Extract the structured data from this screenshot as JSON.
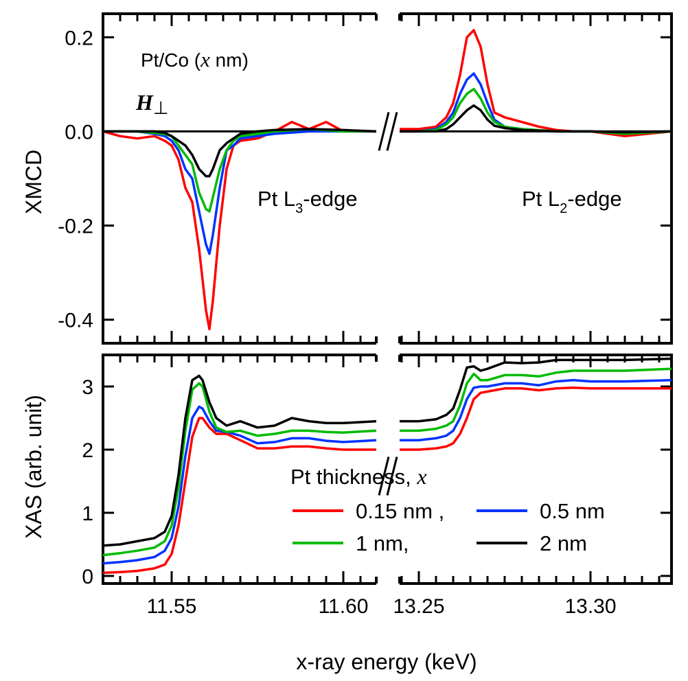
{
  "chart_data": [
    {
      "panel": "top",
      "type": "line",
      "ylabel": "XMCD",
      "ylim": [
        -0.45,
        0.25
      ],
      "yticks": [
        0.2,
        0.0,
        -0.2,
        -0.4
      ],
      "ytick_labels": [
        "0.2",
        "0.0",
        "-0.2",
        "-0.4"
      ],
      "x_segments": [
        {
          "xlim": [
            11.53,
            11.6096
          ],
          "xticks_major": [
            11.55,
            11.6
          ]
        },
        {
          "xlim": [
            13.2444,
            13.3236
          ],
          "xticks_major": [
            13.25,
            13.3
          ]
        }
      ],
      "zero_line": true,
      "annotations": {
        "sample": {
          "pre": "Pt/Co (",
          "var": "x",
          "post": " nm)"
        },
        "field": {
          "symbol": "H",
          "sub": "⊥"
        },
        "l3": {
          "pre": "Pt L",
          "sub": "3",
          "post": "-edge"
        },
        "l2": {
          "pre": "Pt L",
          "sub": "2",
          "post": "-edge"
        }
      },
      "series": [
        {
          "name": "0.15 nm",
          "color": "#ff0000",
          "x": [
            11.53,
            11.535,
            11.54,
            11.545,
            11.548,
            11.55,
            11.552,
            11.554,
            11.556,
            11.558,
            11.56,
            11.561,
            11.562,
            11.564,
            11.566,
            11.568,
            11.57,
            11.575,
            11.58,
            11.585,
            11.59,
            11.595,
            11.6,
            11.6096,
            13.2444,
            13.25,
            13.255,
            13.258,
            13.26,
            13.262,
            13.264,
            13.266,
            13.268,
            13.27,
            13.272,
            13.275,
            13.28,
            13.285,
            13.29,
            13.295,
            13.3,
            13.31,
            13.3236
          ],
          "y": [
            0.0,
            -0.01,
            -0.015,
            -0.01,
            -0.02,
            -0.03,
            -0.06,
            -0.12,
            -0.15,
            -0.25,
            -0.38,
            -0.42,
            -0.36,
            -0.2,
            -0.08,
            -0.03,
            -0.02,
            -0.015,
            0.0,
            0.02,
            0.005,
            0.02,
            0.0,
            0.0,
            0.005,
            0.005,
            0.01,
            0.03,
            0.06,
            0.12,
            0.2,
            0.215,
            0.18,
            0.1,
            0.04,
            0.03,
            0.02,
            0.01,
            0.003,
            0.0,
            0.0,
            -0.01,
            0.0
          ]
        },
        {
          "name": "0.5 nm",
          "color": "#0033ff",
          "x": [
            11.53,
            11.54,
            11.545,
            11.548,
            11.55,
            11.552,
            11.554,
            11.556,
            11.558,
            11.56,
            11.561,
            11.562,
            11.564,
            11.566,
            11.568,
            11.57,
            11.575,
            11.58,
            11.59,
            11.6,
            11.6096,
            13.2444,
            13.25,
            13.255,
            13.258,
            13.26,
            13.262,
            13.264,
            13.266,
            13.268,
            13.27,
            13.272,
            13.275,
            13.28,
            13.29,
            13.3,
            13.31,
            13.3236
          ],
          "y": [
            0.0,
            0.0,
            -0.005,
            -0.01,
            -0.02,
            -0.04,
            -0.08,
            -0.1,
            -0.17,
            -0.24,
            -0.26,
            -0.22,
            -0.12,
            -0.04,
            -0.03,
            -0.015,
            -0.01,
            -0.005,
            0.0,
            0.0,
            0.0,
            0.0,
            0.0,
            0.005,
            0.02,
            0.04,
            0.08,
            0.11,
            0.123,
            0.1,
            0.06,
            0.025,
            0.01,
            0.005,
            0.0,
            0.0,
            -0.005,
            0.0
          ]
        },
        {
          "name": "1 nm",
          "color": "#00bb00",
          "x": [
            11.53,
            11.54,
            11.545,
            11.548,
            11.55,
            11.552,
            11.554,
            11.556,
            11.558,
            11.56,
            11.561,
            11.562,
            11.564,
            11.566,
            11.568,
            11.57,
            11.575,
            11.58,
            11.59,
            11.6,
            11.6096,
            13.2444,
            13.25,
            13.255,
            13.258,
            13.26,
            13.262,
            13.264,
            13.266,
            13.268,
            13.27,
            13.272,
            13.275,
            13.28,
            13.29,
            13.3,
            13.31,
            13.3236
          ],
          "y": [
            0.0,
            0.0,
            -0.003,
            -0.006,
            -0.01,
            -0.03,
            -0.05,
            -0.07,
            -0.13,
            -0.165,
            -0.17,
            -0.14,
            -0.08,
            -0.04,
            -0.02,
            -0.01,
            -0.005,
            0.0,
            0.005,
            0.0,
            0.0,
            0.0,
            0.0,
            0.003,
            0.015,
            0.03,
            0.06,
            0.08,
            0.09,
            0.07,
            0.04,
            0.02,
            0.01,
            0.005,
            0.0,
            0.0,
            -0.005,
            0.0
          ]
        },
        {
          "name": "2 nm",
          "color": "#000000",
          "x": [
            11.53,
            11.54,
            11.545,
            11.548,
            11.55,
            11.552,
            11.554,
            11.556,
            11.558,
            11.56,
            11.561,
            11.562,
            11.564,
            11.566,
            11.568,
            11.57,
            11.575,
            11.58,
            11.59,
            11.6,
            11.6096,
            13.2444,
            13.25,
            13.255,
            13.258,
            13.26,
            13.262,
            13.264,
            13.266,
            13.268,
            13.27,
            13.272,
            13.275,
            13.28,
            13.29,
            13.3,
            13.31,
            13.3236
          ],
          "y": [
            0.0,
            0.0,
            0.0,
            -0.003,
            -0.01,
            -0.02,
            -0.03,
            -0.05,
            -0.08,
            -0.095,
            -0.095,
            -0.08,
            -0.04,
            -0.025,
            -0.015,
            -0.005,
            0.0,
            0.003,
            0.005,
            0.003,
            0.0,
            0.0,
            0.0,
            0.0,
            0.005,
            0.015,
            0.03,
            0.045,
            0.055,
            0.045,
            0.025,
            0.012,
            0.007,
            0.003,
            0.0,
            0.0,
            -0.002,
            0.0
          ]
        }
      ]
    },
    {
      "panel": "bottom",
      "type": "line",
      "ylabel": "XAS (arb. unit)",
      "xlabel": "x-ray energy (keV)",
      "ylim": [
        -0.12,
        3.5
      ],
      "yticks": [
        0,
        1,
        2,
        3
      ],
      "ytick_labels": [
        "0",
        "1",
        "2",
        "3"
      ],
      "x_segments": [
        {
          "xlim": [
            11.53,
            11.6096
          ],
          "xticks_major": [
            11.55,
            11.6
          ],
          "xtick_labels": [
            "11.55",
            "11.60"
          ]
        },
        {
          "xlim": [
            13.2444,
            13.3236
          ],
          "xticks_major": [
            13.25,
            13.3
          ],
          "xtick_labels": [
            "13.25",
            "13.30"
          ]
        }
      ],
      "legend": {
        "title_pre": "Pt thickness, ",
        "title_var": "x",
        "placement": "lower-right",
        "entries": [
          {
            "label": "0.15 nm ,",
            "color": "#ff0000"
          },
          {
            "label": "0.5 nm",
            "color": "#0033ff"
          },
          {
            "label": "1 nm,",
            "color": "#00bb00"
          },
          {
            "label": "2 nm",
            "color": "#000000"
          }
        ]
      },
      "series": [
        {
          "name": "0.15 nm",
          "color": "#ff0000",
          "x": [
            11.53,
            11.535,
            11.54,
            11.545,
            11.548,
            11.55,
            11.552,
            11.554,
            11.556,
            11.558,
            11.559,
            11.561,
            11.563,
            11.566,
            11.57,
            11.575,
            11.58,
            11.585,
            11.59,
            11.595,
            11.6,
            11.6096,
            13.2444,
            13.25,
            13.255,
            13.258,
            13.26,
            13.262,
            13.264,
            13.266,
            13.268,
            13.27,
            13.275,
            13.28,
            13.285,
            13.29,
            13.295,
            13.3,
            13.31,
            13.3236
          ],
          "y": [
            0.05,
            0.06,
            0.08,
            0.12,
            0.18,
            0.35,
            0.8,
            1.5,
            2.2,
            2.5,
            2.5,
            2.35,
            2.25,
            2.25,
            2.15,
            2.02,
            2.02,
            2.05,
            2.05,
            2.02,
            2.0,
            2.0,
            2.0,
            2.0,
            2.02,
            2.05,
            2.1,
            2.25,
            2.5,
            2.8,
            2.9,
            2.92,
            2.97,
            2.97,
            2.94,
            2.97,
            2.98,
            2.97,
            2.97,
            2.97
          ]
        },
        {
          "name": "0.5 nm",
          "color": "#0033ff",
          "x": [
            11.53,
            11.535,
            11.54,
            11.545,
            11.548,
            11.55,
            11.552,
            11.554,
            11.556,
            11.558,
            11.559,
            11.561,
            11.563,
            11.566,
            11.57,
            11.575,
            11.58,
            11.585,
            11.59,
            11.595,
            11.6,
            11.6096,
            13.2444,
            13.25,
            13.255,
            13.258,
            13.26,
            13.262,
            13.264,
            13.266,
            13.268,
            13.27,
            13.275,
            13.28,
            13.285,
            13.29,
            13.295,
            13.3,
            13.31,
            13.3236
          ],
          "y": [
            0.2,
            0.22,
            0.25,
            0.3,
            0.4,
            0.6,
            1.1,
            1.9,
            2.5,
            2.68,
            2.65,
            2.45,
            2.3,
            2.28,
            2.22,
            2.1,
            2.12,
            2.18,
            2.18,
            2.14,
            2.12,
            2.15,
            2.15,
            2.15,
            2.18,
            2.22,
            2.3,
            2.5,
            2.8,
            2.98,
            3.0,
            3.0,
            3.05,
            3.05,
            3.02,
            3.08,
            3.1,
            3.08,
            3.08,
            3.1
          ]
        },
        {
          "name": "1 nm",
          "color": "#00bb00",
          "x": [
            11.53,
            11.535,
            11.54,
            11.545,
            11.548,
            11.55,
            11.552,
            11.554,
            11.556,
            11.558,
            11.559,
            11.561,
            11.563,
            11.566,
            11.57,
            11.575,
            11.58,
            11.585,
            11.59,
            11.595,
            11.6,
            11.6096,
            13.2444,
            13.25,
            13.255,
            13.258,
            13.26,
            13.262,
            13.264,
            13.266,
            13.268,
            13.27,
            13.275,
            13.28,
            13.285,
            13.29,
            13.295,
            13.3,
            13.31,
            13.3236
          ],
          "y": [
            0.33,
            0.36,
            0.4,
            0.45,
            0.55,
            0.8,
            1.4,
            2.3,
            2.95,
            3.05,
            3.0,
            2.6,
            2.35,
            2.28,
            2.3,
            2.22,
            2.25,
            2.3,
            2.3,
            2.28,
            2.27,
            2.3,
            2.3,
            2.3,
            2.33,
            2.38,
            2.45,
            2.7,
            3.05,
            3.2,
            3.1,
            3.1,
            3.18,
            3.18,
            3.16,
            3.22,
            3.25,
            3.25,
            3.25,
            3.28
          ]
        },
        {
          "name": "2 nm",
          "color": "#000000",
          "x": [
            11.53,
            11.535,
            11.54,
            11.545,
            11.548,
            11.55,
            11.552,
            11.554,
            11.556,
            11.558,
            11.559,
            11.561,
            11.563,
            11.566,
            11.57,
            11.575,
            11.58,
            11.585,
            11.59,
            11.595,
            11.6,
            11.6096,
            13.2444,
            13.25,
            13.255,
            13.258,
            13.26,
            13.262,
            13.264,
            13.266,
            13.268,
            13.27,
            13.275,
            13.28,
            13.285,
            13.29,
            13.295,
            13.3,
            13.31,
            13.3236
          ],
          "y": [
            0.48,
            0.5,
            0.55,
            0.6,
            0.7,
            0.95,
            1.6,
            2.5,
            3.1,
            3.17,
            3.1,
            2.75,
            2.5,
            2.38,
            2.45,
            2.35,
            2.38,
            2.5,
            2.45,
            2.42,
            2.42,
            2.45,
            2.45,
            2.45,
            2.48,
            2.55,
            2.65,
            2.95,
            3.3,
            3.32,
            3.25,
            3.28,
            3.38,
            3.37,
            3.38,
            3.42,
            3.42,
            3.42,
            3.42,
            3.44
          ]
        }
      ]
    }
  ]
}
